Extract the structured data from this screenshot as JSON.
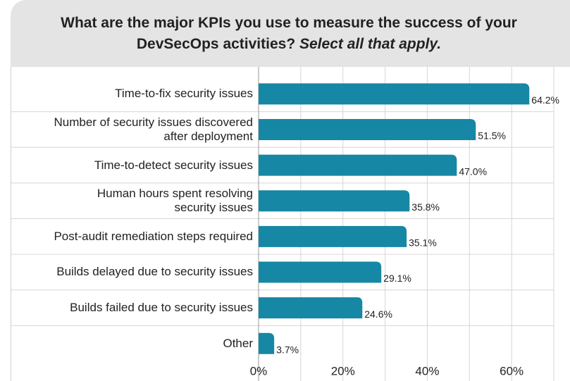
{
  "chart_data": {
    "type": "bar",
    "orientation": "horizontal",
    "title": "What are the major KPIs you use to measure the success of your DevSecOps activities?",
    "subtitle": "Select all that apply.",
    "categories": [
      "Time-to-fix security issues",
      "Number of security issues discovered\nafter deployment",
      "Time-to-detect security issues",
      "Human hours spent resolving\nsecurity issues",
      "Post-audit remediation steps required",
      "Builds delayed due to security issues",
      "Builds failed due to security issues",
      "Other"
    ],
    "values": [
      64.2,
      51.5,
      47.0,
      35.8,
      35.1,
      29.1,
      24.6,
      3.7
    ],
    "value_labels": [
      "64.2%",
      "51.5%",
      "47.0%",
      "35.8%",
      "35.1%",
      "29.1%",
      "24.6%",
      "3.7%"
    ],
    "color": "#1687a4",
    "xlim": [
      0,
      70
    ],
    "xticks": [
      {
        "value": 0,
        "label": "0%"
      },
      {
        "value": 20,
        "label": "20%"
      },
      {
        "value": 40,
        "label": "40%"
      },
      {
        "value": 60,
        "label": "60%"
      }
    ],
    "minor_xticks": [
      10,
      30,
      50,
      70
    ],
    "grid": true
  }
}
